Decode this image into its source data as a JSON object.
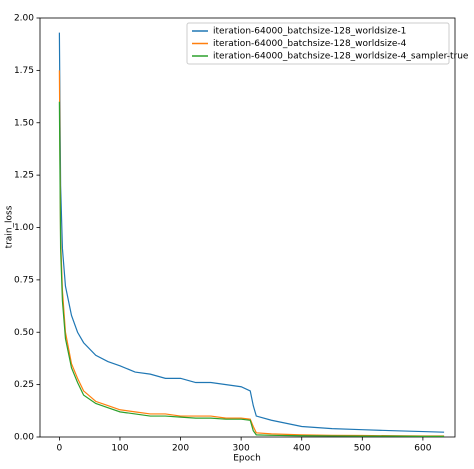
{
  "chart_data": {
    "type": "line",
    "x_label": "Epoch",
    "y_label": "train_loss",
    "x": [
      0,
      2,
      5,
      10,
      20,
      30,
      40,
      60,
      80,
      100,
      125,
      150,
      175,
      200,
      225,
      250,
      275,
      300,
      315,
      320,
      325,
      350,
      400,
      450,
      500,
      550,
      600,
      635
    ],
    "series": [
      {
        "name": "iteration-64000_batchsize-128_worldsize-1",
        "color": "#1f77b4",
        "values": [
          1.93,
          1.2,
          0.9,
          0.72,
          0.58,
          0.5,
          0.45,
          0.39,
          0.36,
          0.34,
          0.31,
          0.3,
          0.28,
          0.28,
          0.26,
          0.26,
          0.25,
          0.24,
          0.22,
          0.15,
          0.1,
          0.08,
          0.05,
          0.04,
          0.035,
          0.03,
          0.026,
          0.023
        ]
      },
      {
        "name": "iteration-64000_batchsize-128_worldsize-4",
        "color": "#ff7f0e",
        "values": [
          1.75,
          0.95,
          0.7,
          0.5,
          0.35,
          0.28,
          0.22,
          0.17,
          0.15,
          0.13,
          0.12,
          0.11,
          0.11,
          0.1,
          0.1,
          0.1,
          0.09,
          0.09,
          0.085,
          0.05,
          0.02,
          0.015,
          0.01,
          0.008,
          0.007,
          0.006,
          0.005,
          0.005
        ]
      },
      {
        "name": "iteration-64000_batchsize-128_worldsize-4_sampler-true",
        "color": "#2ca02c",
        "values": [
          1.6,
          0.9,
          0.65,
          0.47,
          0.33,
          0.26,
          0.2,
          0.16,
          0.14,
          0.12,
          0.11,
          0.1,
          0.1,
          0.095,
          0.09,
          0.09,
          0.085,
          0.085,
          0.08,
          0.03,
          0.01,
          0.008,
          0.006,
          0.005,
          0.004,
          0.004,
          0.003,
          0.003
        ]
      }
    ],
    "xlim": [
      -32,
      653
    ],
    "ylim": [
      0,
      2
    ],
    "xticks": [
      0,
      100,
      200,
      300,
      400,
      500,
      600
    ],
    "yticks": [
      {
        "value": 0,
        "label": "0.00"
      },
      {
        "value": 0.25,
        "label": "0.25"
      },
      {
        "value": 0.5,
        "label": "0.50"
      },
      {
        "value": 0.75,
        "label": "0.75"
      },
      {
        "value": 1,
        "label": "1.00"
      },
      {
        "value": 1.25,
        "label": "1.25"
      },
      {
        "value": 1.5,
        "label": "1.50"
      },
      {
        "value": 1.75,
        "label": "1.75"
      },
      {
        "value": 2,
        "label": "2.00"
      }
    ],
    "legend": "upper right",
    "grid": false
  }
}
